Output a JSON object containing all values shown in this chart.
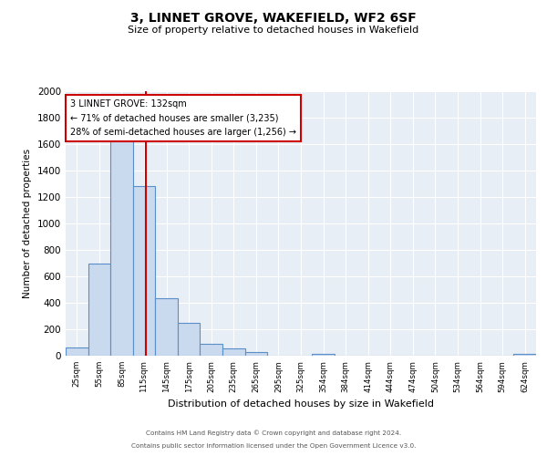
{
  "title": "3, LINNET GROVE, WAKEFIELD, WF2 6SF",
  "subtitle": "Size of property relative to detached houses in Wakefield",
  "xlabel": "Distribution of detached houses by size in Wakefield",
  "ylabel": "Number of detached properties",
  "bar_labels": [
    "25sqm",
    "55sqm",
    "85sqm",
    "115sqm",
    "145sqm",
    "175sqm",
    "205sqm",
    "235sqm",
    "265sqm",
    "295sqm",
    "325sqm",
    "354sqm",
    "384sqm",
    "414sqm",
    "444sqm",
    "474sqm",
    "504sqm",
    "534sqm",
    "564sqm",
    "594sqm",
    "624sqm"
  ],
  "bar_values": [
    65,
    695,
    1635,
    1285,
    435,
    250,
    90,
    55,
    30,
    0,
    0,
    15,
    0,
    0,
    0,
    0,
    0,
    0,
    0,
    0,
    15
  ],
  "bar_color": "#c9d9ee",
  "bar_edge_color": "#5b8fc9",
  "vline_x": 132,
  "vline_color": "#cc0000",
  "annotation_title": "3 LINNET GROVE: 132sqm",
  "annotation_line1": "← 71% of detached houses are smaller (3,235)",
  "annotation_line2": "28% of semi-detached houses are larger (1,256) →",
  "annotation_box_color": "#ffffff",
  "annotation_box_edge": "#cc0000",
  "ylim": [
    0,
    2000
  ],
  "yticks": [
    0,
    200,
    400,
    600,
    800,
    1000,
    1200,
    1400,
    1600,
    1800,
    2000
  ],
  "background_color": "#e8eef5",
  "footer1": "Contains HM Land Registry data © Crown copyright and database right 2024.",
  "footer2": "Contains public sector information licensed under the Open Government Licence v3.0."
}
